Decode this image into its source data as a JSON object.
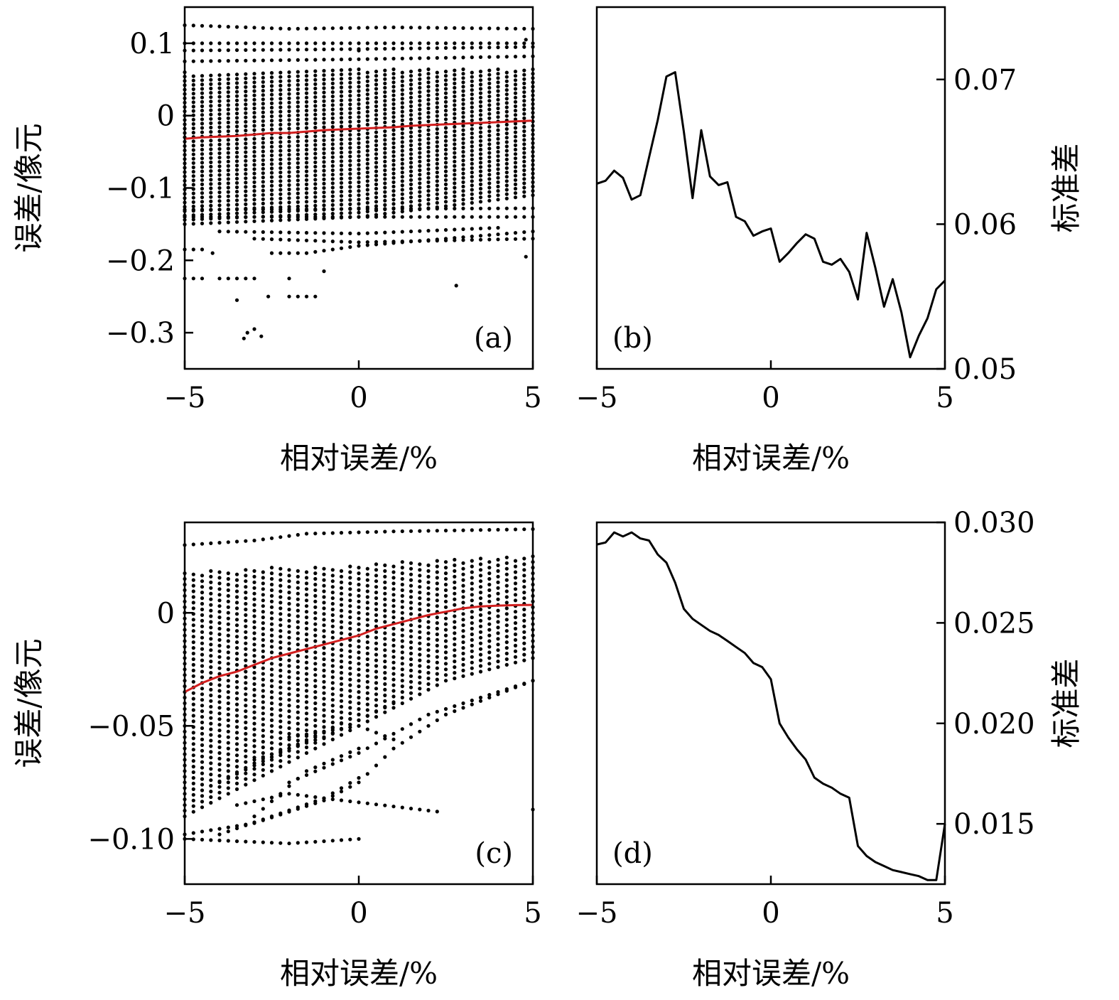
{
  "chart_data": [
    {
      "id": "a",
      "type": "scatter",
      "panel_label": "(a)",
      "xlabel": "相对误差/%",
      "ylabel": "误差/像元",
      "xlim": [
        -5,
        5
      ],
      "ylim": [
        -0.35,
        0.15
      ],
      "xticks": [
        -5,
        0,
        5
      ],
      "xtick_labels": [
        "−5",
        "0",
        "5"
      ],
      "yticks": [
        0.1,
        0,
        -0.1,
        -0.2,
        -0.3
      ],
      "ytick_labels": [
        "0.1",
        "0",
        "−0.1",
        "−0.2",
        "−0.3"
      ],
      "x_columns": {
        "start": -5,
        "stop": 5,
        "count": 41
      },
      "dense_band": [
        [
          -5,
          -0.15,
          0.06
        ],
        [
          0,
          -0.14,
          0.065
        ],
        [
          5,
          -0.11,
          0.065
        ]
      ],
      "dense_step": 0.006,
      "outlier_tracks": [
        [
          [
            -5,
            0.125
          ],
          [
            -2,
            0.12
          ],
          [
            1,
            0.122
          ],
          [
            5,
            0.12
          ]
        ],
        [
          [
            -5,
            0.1
          ],
          [
            0,
            0.1
          ],
          [
            5,
            0.1
          ]
        ],
        [
          [
            -5,
            0.09
          ],
          [
            0,
            0.092
          ],
          [
            5,
            0.095
          ]
        ],
        [
          [
            -5,
            0.075
          ],
          [
            0,
            0.078
          ],
          [
            5,
            0.082
          ]
        ],
        [
          [
            -5,
            -0.13
          ],
          [
            5,
            -0.128
          ]
        ],
        [
          [
            -5,
            -0.14
          ],
          [
            5,
            -0.14
          ]
        ],
        [
          [
            -4,
            -0.16
          ],
          [
            0,
            -0.163
          ],
          [
            4,
            -0.155
          ]
        ],
        [
          [
            -2.5,
            -0.19
          ],
          [
            -1.5,
            -0.19
          ],
          [
            0,
            -0.18
          ],
          [
            5,
            -0.16
          ]
        ],
        [
          [
            -3,
            -0.17
          ],
          [
            0,
            -0.175
          ],
          [
            5,
            -0.17
          ]
        ],
        [
          [
            -5,
            -0.185
          ],
          [
            -4.5,
            -0.185
          ]
        ],
        [
          [
            -5,
            -0.225
          ],
          [
            -4.5,
            -0.225
          ]
        ],
        [
          [
            -4,
            -0.225
          ],
          [
            -3,
            -0.225
          ]
        ],
        [
          [
            -2,
            -0.25
          ],
          [
            -1.2,
            -0.25
          ]
        ]
      ],
      "isolated_points": [
        [
          -4.2,
          -0.19
        ],
        [
          -3.5,
          -0.255
        ],
        [
          -3.2,
          -0.3
        ],
        [
          -3.0,
          -0.295
        ],
        [
          -2.8,
          -0.305
        ],
        [
          -3.3,
          -0.308
        ],
        [
          -2.6,
          -0.25
        ],
        [
          -2.0,
          -0.225
        ],
        [
          -1.0,
          -0.215
        ],
        [
          2.8,
          -0.235
        ],
        [
          4.8,
          -0.195
        ],
        [
          4.8,
          0.105
        ],
        [
          0,
          0.09
        ]
      ],
      "mean_line": {
        "color": "#d11f1f",
        "x": [
          -5,
          -4.5,
          -4,
          -3.5,
          -3,
          -2.5,
          -2,
          -1.5,
          -1,
          -0.5,
          0,
          0.5,
          1,
          1.5,
          2,
          2.5,
          3,
          3.5,
          4,
          4.5,
          5
        ],
        "y": [
          -0.032,
          -0.03,
          -0.029,
          -0.028,
          -0.026,
          -0.024,
          -0.024,
          -0.022,
          -0.02,
          -0.019,
          -0.018,
          -0.017,
          -0.016,
          -0.014,
          -0.013,
          -0.012,
          -0.011,
          -0.01,
          -0.009,
          -0.008,
          -0.007
        ]
      },
      "grid": false,
      "y_axis_side": "left"
    },
    {
      "id": "b",
      "type": "line",
      "panel_label": "(b)",
      "xlabel": "相对误差/%",
      "ylabel": "标准差",
      "xlim": [
        -5,
        5
      ],
      "ylim": [
        0.05,
        0.075
      ],
      "xticks": [
        -5,
        0,
        5
      ],
      "xtick_labels": [
        "−5",
        "0",
        "5"
      ],
      "yticks": [
        0.07,
        0.06,
        0.05
      ],
      "ytick_labels": [
        "0.07",
        "0.06",
        "0.05"
      ],
      "series": [
        {
          "color": "#000000",
          "x": [
            -5,
            -4.75,
            -4.5,
            -4.25,
            -4,
            -3.75,
            -3.5,
            -3.25,
            -3,
            -2.75,
            -2.5,
            -2.25,
            -2,
            -1.75,
            -1.5,
            -1.25,
            -1,
            -0.75,
            -0.5,
            -0.25,
            0,
            0.25,
            0.5,
            0.75,
            1,
            1.25,
            1.5,
            1.75,
            2,
            2.25,
            2.5,
            2.75,
            3,
            3.25,
            3.5,
            3.75,
            4,
            4.25,
            4.5,
            4.75,
            5
          ],
          "y": [
            0.0628,
            0.063,
            0.0637,
            0.0632,
            0.0617,
            0.062,
            0.0646,
            0.0672,
            0.0702,
            0.0705,
            0.0664,
            0.0618,
            0.0665,
            0.0633,
            0.0627,
            0.0629,
            0.0605,
            0.0602,
            0.0592,
            0.0595,
            0.0597,
            0.0574,
            0.058,
            0.0587,
            0.0593,
            0.059,
            0.0574,
            0.0572,
            0.0576,
            0.0567,
            0.0548,
            0.0594,
            0.057,
            0.0543,
            0.0562,
            0.0539,
            0.0508,
            0.0523,
            0.0535,
            0.0555,
            0.0561
          ]
        }
      ],
      "grid": false,
      "y_axis_side": "right"
    },
    {
      "id": "c",
      "type": "scatter",
      "panel_label": "(c)",
      "xlabel": "相对误差/%",
      "ylabel": "误差/像元",
      "xlim": [
        -5,
        5
      ],
      "ylim": [
        -0.12,
        0.04
      ],
      "xticks": [
        -5,
        0,
        5
      ],
      "xtick_labels": [
        "−5",
        "0",
        "5"
      ],
      "yticks": [
        0,
        -0.05,
        -0.1
      ],
      "ytick_labels": [
        "0",
        "−0.05",
        "−0.10"
      ],
      "x_columns": {
        "start": -5,
        "stop": 5,
        "count": 41
      },
      "dense_band": [
        [
          -5,
          -0.09,
          0.018
        ],
        [
          -2.5,
          -0.07,
          0.02
        ],
        [
          0,
          -0.05,
          0.021
        ],
        [
          2.5,
          -0.03,
          0.024
        ],
        [
          5,
          -0.02,
          0.025
        ]
      ],
      "dense_step": 0.0025,
      "outlier_tracks": [
        [
          [
            -5,
            0.03
          ],
          [
            -3,
            0.032
          ],
          [
            -1.5,
            0.035
          ],
          [
            1,
            0.036
          ],
          [
            5,
            0.037
          ]
        ],
        [
          [
            -5,
            -0.098
          ],
          [
            -3,
            -0.093
          ],
          [
            -1,
            -0.083
          ],
          [
            0,
            -0.075
          ],
          [
            1,
            -0.06
          ],
          [
            2.5,
            -0.045
          ],
          [
            5,
            -0.03
          ]
        ],
        [
          [
            -5,
            -0.1
          ],
          [
            -2,
            -0.102
          ],
          [
            0,
            -0.1
          ]
        ],
        [
          [
            -4,
            -0.098
          ],
          [
            -1,
            -0.082
          ],
          [
            0,
            -0.073
          ]
        ],
        [
          [
            -3.5,
            -0.085
          ],
          [
            -2,
            -0.08
          ],
          [
            -1,
            -0.082
          ],
          [
            2.3,
            -0.088
          ]
        ],
        [
          [
            -2,
            -0.075
          ],
          [
            0,
            -0.062
          ],
          [
            2,
            -0.045
          ],
          [
            5,
            -0.03
          ]
        ],
        [
          [
            -3,
            -0.065
          ],
          [
            -1,
            -0.055
          ],
          [
            1,
            -0.04
          ]
        ],
        [
          [
            -2,
            -0.055
          ],
          [
            0,
            -0.05
          ],
          [
            1,
            -0.056
          ]
        ],
        [
          [
            -4,
            -0.075
          ],
          [
            -2,
            -0.06
          ],
          [
            0,
            -0.045
          ]
        ],
        [
          [
            -3,
            -0.09
          ],
          [
            -1.5,
            -0.07
          ],
          [
            0,
            -0.06
          ]
        ]
      ],
      "isolated_points": [
        [
          5,
          -0.087
        ]
      ],
      "mean_line": {
        "color": "#d11f1f",
        "x": [
          -5,
          -4.5,
          -4,
          -3.5,
          -3,
          -2.5,
          -2,
          -1.5,
          -1,
          -0.5,
          0,
          0.5,
          1,
          1.5,
          2,
          2.5,
          3,
          3.5,
          4,
          4.5,
          5
        ],
        "y": [
          -0.035,
          -0.031,
          -0.028,
          -0.026,
          -0.023,
          -0.02,
          -0.018,
          -0.016,
          -0.014,
          -0.012,
          -0.01,
          -0.007,
          -0.005,
          -0.003,
          -0.001,
          0.0005,
          0.002,
          0.0028,
          0.0032,
          0.0034,
          0.0035
        ]
      },
      "grid": false,
      "y_axis_side": "left"
    },
    {
      "id": "d",
      "type": "line",
      "panel_label": "(d)",
      "xlabel": "相对误差/%",
      "ylabel": "标准差",
      "xlim": [
        -5,
        5
      ],
      "ylim": [
        0.012,
        0.03
      ],
      "xticks": [
        -5,
        0,
        5
      ],
      "xtick_labels": [
        "−5",
        "0",
        "5"
      ],
      "yticks": [
        0.03,
        0.025,
        0.02,
        0.015
      ],
      "ytick_labels": [
        "0.030",
        "0.025",
        "0.020",
        "0.015"
      ],
      "series": [
        {
          "color": "#000000",
          "x": [
            -5,
            -4.75,
            -4.5,
            -4.25,
            -4,
            -3.75,
            -3.5,
            -3.25,
            -3,
            -2.75,
            -2.5,
            -2.25,
            -2,
            -1.75,
            -1.5,
            -1.25,
            -1,
            -0.75,
            -0.5,
            -0.25,
            0,
            0.25,
            0.5,
            0.75,
            1,
            1.25,
            1.5,
            1.75,
            2,
            2.25,
            2.5,
            2.75,
            3,
            3.25,
            3.5,
            3.75,
            4,
            4.25,
            4.5,
            4.75,
            5
          ],
          "y": [
            0.0289,
            0.029,
            0.0295,
            0.0293,
            0.0295,
            0.0292,
            0.0291,
            0.0284,
            0.028,
            0.027,
            0.0257,
            0.0252,
            0.0249,
            0.0246,
            0.0244,
            0.0241,
            0.0238,
            0.0235,
            0.023,
            0.0228,
            0.0222,
            0.02,
            0.0193,
            0.0187,
            0.0182,
            0.0173,
            0.017,
            0.0168,
            0.0165,
            0.0163,
            0.0139,
            0.0134,
            0.0131,
            0.0129,
            0.0127,
            0.0126,
            0.0125,
            0.0124,
            0.0122,
            0.0122,
            0.015
          ]
        }
      ],
      "grid": false,
      "y_axis_side": "right"
    }
  ]
}
